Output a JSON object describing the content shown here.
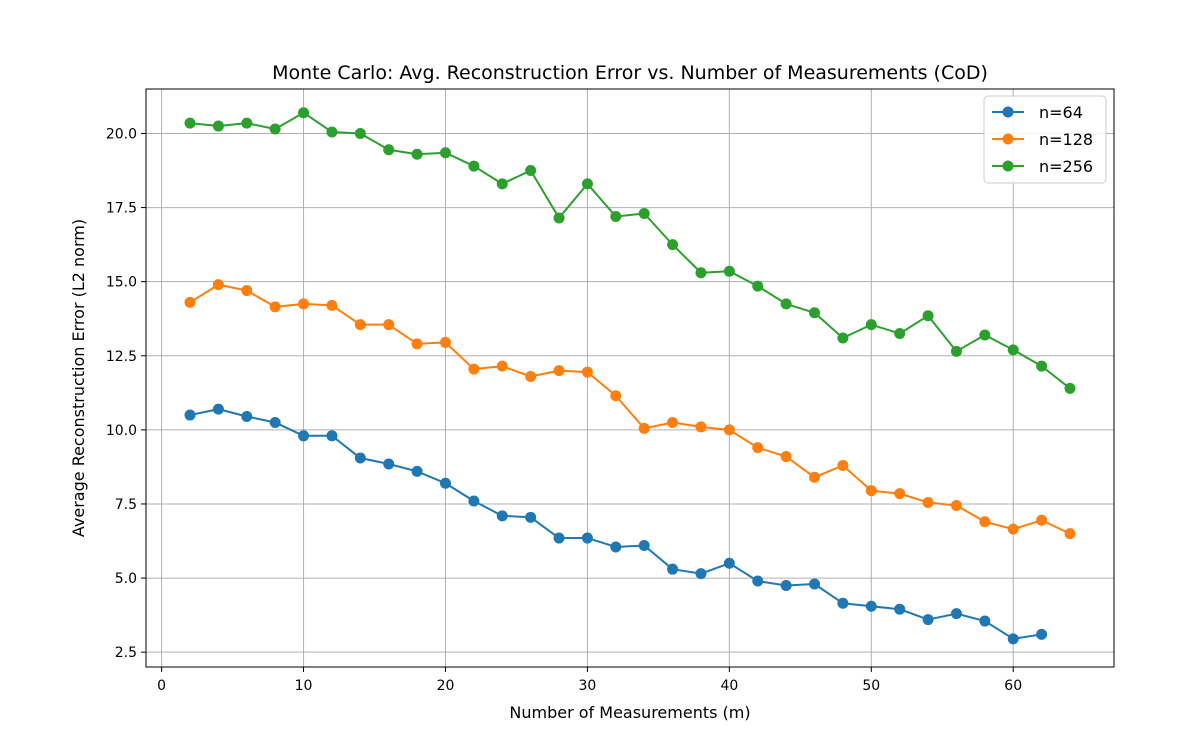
{
  "chart_data": {
    "type": "line",
    "title": "Monte Carlo: Avg. Reconstruction Error vs. Number of Measurements (CoD)",
    "xlabel": "Number of Measurements (m)",
    "ylabel": "Average Reconstruction Error (L2 norm)",
    "xlim": [
      -1.1,
      67.1
    ],
    "ylim": [
      2.0,
      21.5
    ],
    "x_ticks": [
      0,
      10,
      20,
      30,
      40,
      50,
      60
    ],
    "y_ticks": [
      2.5,
      5.0,
      7.5,
      10.0,
      12.5,
      15.0,
      17.5,
      20.0
    ],
    "x_tick_labels": [
      "0",
      "10",
      "20",
      "30",
      "40",
      "50",
      "60"
    ],
    "y_tick_labels": [
      "2.5",
      "5.0",
      "7.5",
      "10.0",
      "12.5",
      "15.0",
      "17.5",
      "20.0"
    ],
    "grid": true,
    "legend_position": "top-right",
    "series": [
      {
        "name": "n=64",
        "color": "#1f77b4",
        "x": [
          2,
          4,
          6,
          8,
          10,
          12,
          14,
          16,
          18,
          20,
          22,
          24,
          26,
          28,
          30,
          32,
          34,
          36,
          38,
          40,
          42,
          44,
          46,
          48,
          50,
          52,
          54,
          56,
          58,
          60,
          62
        ],
        "y": [
          10.5,
          10.7,
          10.45,
          10.25,
          9.8,
          9.8,
          9.05,
          8.85,
          8.6,
          8.2,
          7.6,
          7.1,
          7.05,
          6.35,
          6.35,
          6.05,
          6.1,
          5.3,
          5.15,
          5.5,
          4.9,
          4.75,
          4.8,
          4.15,
          4.05,
          3.95,
          3.6,
          3.8,
          3.55,
          2.95,
          3.1
        ]
      },
      {
        "name": "n=128",
        "color": "#ff7f0e",
        "x": [
          2,
          4,
          6,
          8,
          10,
          12,
          14,
          16,
          18,
          20,
          22,
          24,
          26,
          28,
          30,
          32,
          34,
          36,
          38,
          40,
          42,
          44,
          46,
          48,
          50,
          52,
          54,
          56,
          58,
          60,
          62,
          64
        ],
        "y": [
          14.3,
          14.9,
          14.7,
          14.15,
          14.25,
          14.2,
          13.55,
          13.55,
          12.9,
          12.95,
          12.05,
          12.15,
          11.8,
          12.0,
          11.95,
          11.15,
          10.05,
          10.25,
          10.1,
          10.0,
          9.4,
          9.1,
          8.4,
          8.8,
          7.95,
          7.85,
          7.55,
          7.45,
          6.9,
          6.65,
          6.95,
          6.5
        ]
      },
      {
        "name": "n=256",
        "color": "#2ca02c",
        "x": [
          2,
          4,
          6,
          8,
          10,
          12,
          14,
          16,
          18,
          20,
          22,
          24,
          26,
          28,
          30,
          32,
          34,
          36,
          38,
          40,
          42,
          44,
          46,
          48,
          50,
          52,
          54,
          56,
          58,
          60,
          62,
          64
        ],
        "y": [
          20.35,
          20.25,
          20.35,
          20.15,
          20.7,
          20.05,
          20.0,
          19.45,
          19.3,
          19.35,
          18.9,
          18.3,
          18.75,
          17.15,
          18.3,
          17.2,
          17.3,
          16.25,
          15.3,
          15.35,
          14.85,
          14.25,
          13.95,
          13.1,
          13.55,
          13.25,
          13.85,
          12.65,
          13.2,
          12.7,
          12.15,
          11.4
        ]
      }
    ]
  }
}
